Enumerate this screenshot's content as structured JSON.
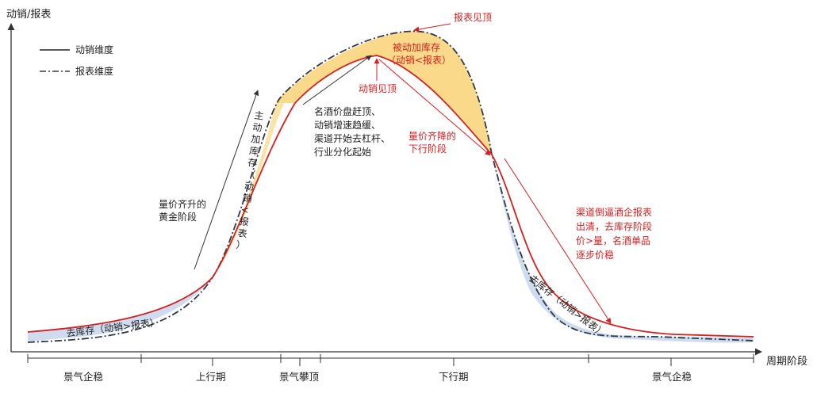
{
  "axes": {
    "y_label": "动销/报表",
    "x_label": "周期阶段"
  },
  "legend": {
    "solid": "动销维度",
    "dashdot": "报表维度"
  },
  "phases": [
    "景气企稳",
    "上行期",
    "景气攀顶",
    "下行期",
    "景气企稳"
  ],
  "regions": {
    "destock_left": "去库存（动销>报表）",
    "active_stock": [
      "主",
      "动",
      "加",
      "库",
      "存",
      "（",
      "动",
      "销",
      "<",
      "报",
      "表",
      "）"
    ],
    "passive_stock": [
      "被动加库存",
      "（动销<报表）"
    ],
    "destock_right": "去库存（动销>报表）"
  },
  "annotations": {
    "golden_stage": [
      "量价齐升的",
      "黄金阶段"
    ],
    "peak_notes": [
      "名酒价盘赶顶、",
      "动销增速趋缓、",
      "渠道开始去杠杆、",
      "行业分化起始"
    ],
    "report_peak": "报表见顶",
    "sales_peak": "动销见顶",
    "decline_stage": [
      "量价齐降的",
      "下行阶段"
    ],
    "channel_clear": [
      "渠道倒逼酒企报表",
      "出清，去库存阶段",
      "价>量，名酒单品",
      "逐步价稳"
    ]
  },
  "colors": {
    "sales_line": "#d42020",
    "report_line": "#2f3a4a",
    "passive_fill": "#fbd98a",
    "destock_fill": "#cfdcef",
    "axis": "#333333",
    "note_black": "#222222",
    "note_red": "#d42020"
  }
}
